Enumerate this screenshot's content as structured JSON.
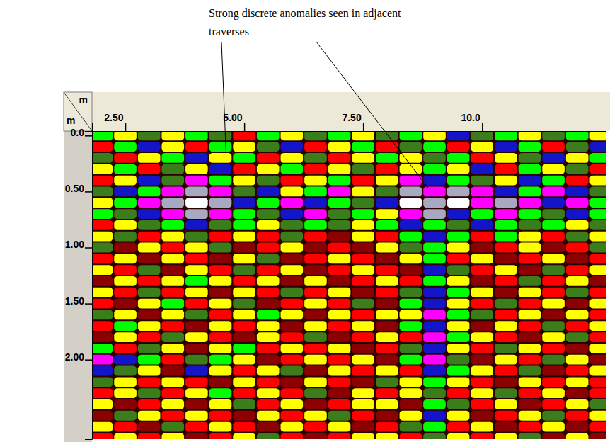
{
  "chart_data": {
    "type": "heatmap",
    "annotations": [
      {
        "text": "Strong discrete anomalies seen in adjacent traverses",
        "arrows": [
          {
            "x": 4.62,
            "y": 0.17
          },
          {
            "x": 8.87,
            "y": 0.47
          }
        ]
      }
    ],
    "xlabel": "m",
    "ylabel": "m",
    "xlim": [
      1.8,
      12.6
    ],
    "ylim": [
      -0.04,
      2.71
    ],
    "xticks": [
      {
        "value": 2.5,
        "label": "2.50"
      },
      {
        "value": 5,
        "label": "5.00"
      },
      {
        "value": 7.5,
        "label": "7.50"
      },
      {
        "value": 10,
        "label": "10.0"
      }
    ],
    "yticks": [
      {
        "value": 0,
        "label": "0.0"
      },
      {
        "value": 0.5,
        "label": "0.50"
      },
      {
        "value": 1,
        "label": "1.00"
      },
      {
        "value": 1.5,
        "label": "1.50"
      },
      {
        "value": 2,
        "label": "2.00"
      }
    ],
    "x": [
      2.0,
      2.5,
      3.0,
      3.5,
      4.0,
      4.5,
      5.0,
      5.5,
      6.0,
      6.5,
      7.0,
      7.5,
      8.0,
      8.5,
      9.0,
      9.5,
      10.0,
      10.5,
      11.0,
      11.5,
      12.0,
      12.5
    ],
    "y": [
      0.0,
      0.1,
      0.2,
      0.3,
      0.4,
      0.5,
      0.6,
      0.7,
      0.8,
      0.9,
      1.0,
      1.1,
      1.2,
      1.3,
      1.4,
      1.5,
      1.6,
      1.7,
      1.8,
      1.9,
      2.0,
      2.1,
      2.2,
      2.3,
      2.4,
      2.5,
      2.6,
      2.7
    ],
    "cells": [
      [
        4,
        2,
        3,
        2,
        4,
        3,
        1,
        4,
        2,
        3,
        4,
        2,
        3,
        4,
        2,
        5,
        3,
        4,
        2,
        3,
        4,
        2
      ],
      [
        1,
        4,
        5,
        2,
        1,
        4,
        2,
        3,
        5,
        1,
        2,
        4,
        1,
        3,
        4,
        1,
        2,
        5,
        4,
        1,
        3,
        5
      ],
      [
        3,
        1,
        2,
        4,
        5,
        2,
        4,
        1,
        2,
        3,
        1,
        2,
        4,
        2,
        3,
        4,
        1,
        2,
        3,
        5,
        2,
        4
      ],
      [
        2,
        4,
        1,
        3,
        2,
        5,
        1,
        2,
        4,
        1,
        2,
        3,
        1,
        2,
        4,
        2,
        5,
        1,
        4,
        2,
        3,
        1
      ],
      [
        1,
        2,
        5,
        3,
        6,
        4,
        2,
        3,
        1,
        2,
        4,
        1,
        2,
        6,
        5,
        4,
        3,
        2,
        5,
        4,
        1,
        2
      ],
      [
        3,
        5,
        4,
        6,
        7,
        6,
        3,
        5,
        2,
        4,
        6,
        2,
        3,
        7,
        6,
        7,
        6,
        5,
        4,
        6,
        5,
        3
      ],
      [
        2,
        4,
        6,
        7,
        8,
        7,
        5,
        4,
        6,
        5,
        4,
        3,
        5,
        8,
        7,
        8,
        6,
        7,
        6,
        5,
        6,
        4
      ],
      [
        4,
        3,
        5,
        6,
        7,
        6,
        4,
        3,
        5,
        6,
        3,
        4,
        2,
        6,
        7,
        5,
        4,
        6,
        4,
        3,
        5,
        4
      ],
      [
        1,
        2,
        3,
        4,
        5,
        3,
        4,
        2,
        3,
        4,
        3,
        2,
        4,
        5,
        4,
        3,
        5,
        4,
        3,
        4,
        2,
        3
      ],
      [
        2,
        3,
        1,
        2,
        3,
        1,
        2,
        1,
        3,
        1,
        0,
        2,
        1,
        4,
        5,
        4,
        1,
        4,
        2,
        1,
        3,
        2
      ],
      [
        3,
        0,
        2,
        1,
        2,
        3,
        0,
        1,
        2,
        0,
        1,
        0,
        2,
        3,
        4,
        2,
        0,
        1,
        2,
        0,
        1,
        3
      ],
      [
        1,
        2,
        0,
        2,
        1,
        0,
        2,
        3,
        0,
        1,
        2,
        1,
        0,
        2,
        4,
        1,
        2,
        0,
        1,
        2,
        0,
        1
      ],
      [
        2,
        1,
        3,
        0,
        2,
        1,
        3,
        1,
        2,
        0,
        1,
        2,
        1,
        0,
        5,
        3,
        1,
        2,
        0,
        3,
        1,
        2
      ],
      [
        0,
        2,
        1,
        2,
        4,
        2,
        1,
        2,
        0,
        2,
        0,
        1,
        2,
        1,
        4,
        2,
        0,
        1,
        3,
        1,
        2,
        0
      ],
      [
        2,
        1,
        3,
        1,
        2,
        0,
        2,
        1,
        3,
        1,
        2,
        0,
        1,
        3,
        5,
        4,
        2,
        0,
        2,
        1,
        3,
        1
      ],
      [
        1,
        0,
        2,
        4,
        1,
        2,
        3,
        0,
        1,
        2,
        1,
        3,
        0,
        4,
        5,
        2,
        1,
        3,
        1,
        2,
        0,
        2
      ],
      [
        3,
        2,
        0,
        2,
        3,
        1,
        2,
        4,
        2,
        0,
        2,
        1,
        2,
        2,
        6,
        4,
        3,
        1,
        2,
        0,
        2,
        1
      ],
      [
        1,
        4,
        2,
        1,
        0,
        2,
        1,
        2,
        0,
        2,
        1,
        2,
        0,
        4,
        5,
        2,
        0,
        2,
        1,
        3,
        1,
        2
      ],
      [
        0,
        2,
        1,
        3,
        2,
        1,
        0,
        2,
        1,
        3,
        0,
        1,
        2,
        1,
        6,
        4,
        2,
        1,
        0,
        2,
        3,
        1
      ],
      [
        4,
        1,
        3,
        2,
        0,
        2,
        4,
        1,
        2,
        1,
        2,
        0,
        1,
        3,
        5,
        2,
        1,
        3,
        2,
        1,
        0,
        2
      ],
      [
        6,
        5,
        4,
        1,
        3,
        4,
        2,
        0,
        1,
        2,
        1,
        2,
        0,
        4,
        6,
        3,
        0,
        2,
        1,
        3,
        2,
        0
      ],
      [
        5,
        3,
        2,
        0,
        5,
        2,
        1,
        2,
        3,
        0,
        2,
        1,
        2,
        1,
        5,
        4,
        2,
        1,
        3,
        0,
        1,
        2
      ],
      [
        3,
        2,
        1,
        2,
        1,
        0,
        2,
        1,
        0,
        2,
        1,
        0,
        3,
        2,
        4,
        2,
        1,
        0,
        2,
        1,
        2,
        1
      ],
      [
        1,
        2,
        3,
        1,
        2,
        4,
        1,
        2,
        1,
        3,
        0,
        2,
        1,
        2,
        3,
        1,
        2,
        3,
        1,
        2,
        0,
        1
      ],
      [
        2,
        0,
        1,
        2,
        0,
        2,
        3,
        1,
        2,
        0,
        1,
        2,
        2,
        0,
        4,
        3,
        1,
        2,
        0,
        1,
        2,
        3
      ],
      [
        0,
        3,
        2,
        1,
        2,
        1,
        0,
        2,
        1,
        2,
        3,
        1,
        0,
        2,
        5,
        2,
        0,
        1,
        2,
        3,
        1,
        2
      ],
      [
        2,
        1,
        0,
        3,
        1,
        2,
        1,
        0,
        2,
        1,
        2,
        0,
        1,
        3,
        4,
        1,
        2,
        0,
        1,
        2,
        0,
        1
      ],
      [
        1,
        2,
        1,
        2,
        0,
        1,
        2,
        3,
        1,
        0,
        1,
        2,
        2,
        1,
        3,
        2,
        1,
        2,
        3,
        0,
        2,
        0
      ]
    ]
  }
}
